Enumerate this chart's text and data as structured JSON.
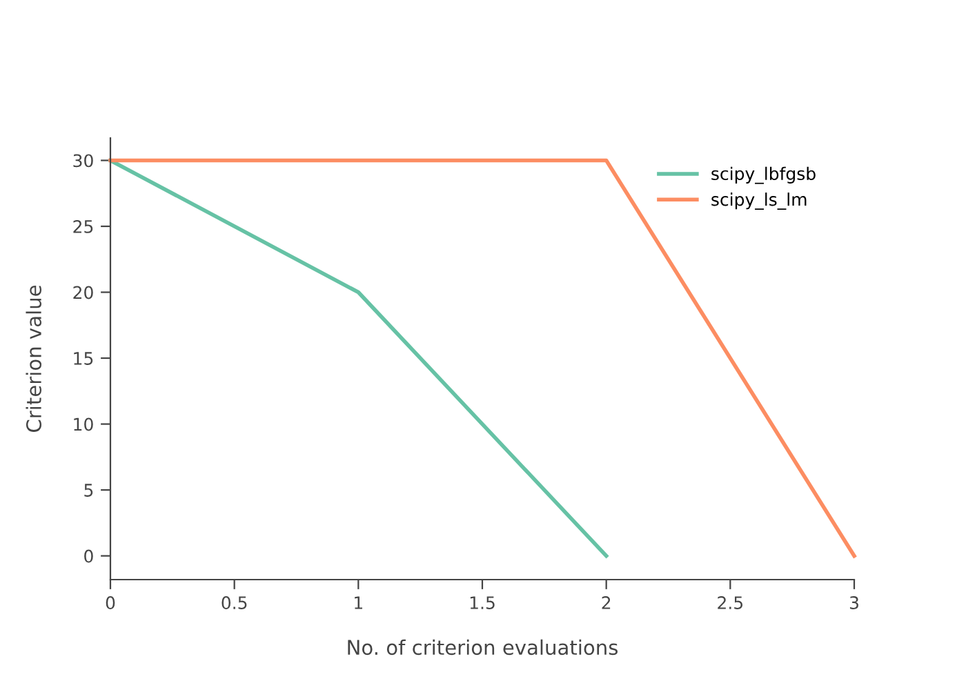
{
  "chart_data": {
    "type": "line",
    "xlabel": "No. of criterion evaluations",
    "ylabel": "Criterion value",
    "series": [
      {
        "name": "scipy_lbfgsb",
        "color": "#66c2a5",
        "x": [
          0,
          1,
          2
        ],
        "values": [
          30,
          20,
          0
        ]
      },
      {
        "name": "scipy_ls_lm",
        "color": "#fc8d62",
        "x": [
          0,
          1,
          2,
          3
        ],
        "values": [
          30,
          30,
          30,
          0
        ]
      }
    ],
    "xlim": [
      0,
      3
    ],
    "xticks": [
      0,
      0.5,
      1,
      1.5,
      2,
      2.5,
      3
    ],
    "ylim": [
      -1.8,
      31.7
    ],
    "yticks": [
      0,
      5,
      10,
      15,
      20,
      25,
      30
    ],
    "grid": false,
    "legend": "top right",
    "marker": "none",
    "line_style": "solid"
  }
}
